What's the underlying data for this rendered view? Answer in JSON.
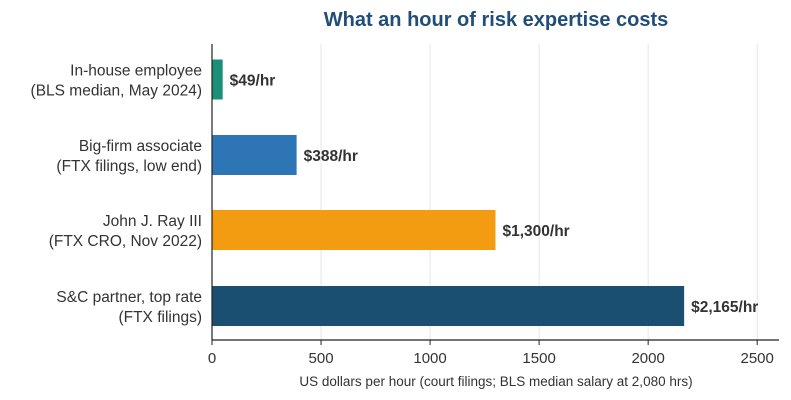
{
  "chart_data": {
    "type": "bar",
    "orientation": "horizontal",
    "title": "What an hour of risk expertise costs",
    "xlabel": "US dollars per hour (court filings; BLS median salary at 2,080 hrs)",
    "ylabel": "",
    "xlim": [
      0,
      2600
    ],
    "xticks": [
      0,
      500,
      1000,
      1500,
      2000,
      2500
    ],
    "grid": "vertical",
    "legend": "none",
    "categories": [
      [
        "In-house employee",
        "(BLS median, May 2024)"
      ],
      [
        "Big-firm associate",
        "(FTX filings, low end)"
      ],
      [
        "John J. Ray III",
        "(FTX CRO, Nov 2022)"
      ],
      [
        "S&C partner, top rate",
        "(FTX filings)"
      ]
    ],
    "values": [
      49,
      388,
      1300,
      2165
    ],
    "data_labels": [
      "$49/hr",
      "$388/hr",
      "$1,300/hr",
      "$2,165/hr"
    ],
    "colors": [
      "#1a9079",
      "#2e75b6",
      "#f39c12",
      "#1b4f72"
    ]
  },
  "style": {
    "title_color": "#1f4e79",
    "text_color": "#333333",
    "grid_color": "#e6e6e6",
    "axis_color": "#222222"
  }
}
